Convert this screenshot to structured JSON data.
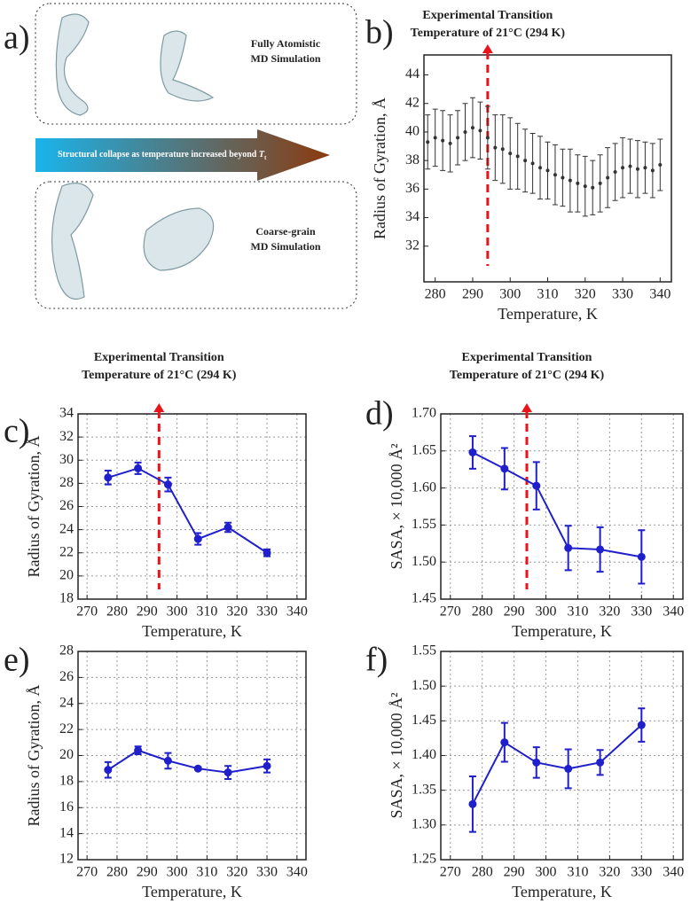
{
  "panel_a": {
    "label": "a)",
    "top_caption": [
      "Fully Atomistic",
      "MD Simulation"
    ],
    "arrow_caption": "Structural collapse as temperature increased beyond",
    "arrow_symbol": "T",
    "arrow_symbol_sub": "t",
    "bottom_caption": [
      "Coarse-grain",
      "MD Simulation"
    ]
  },
  "chart_data": [
    {
      "type": "scatter",
      "label": "b)",
      "xlabel": "Temperature, K",
      "ylabel": "Radius of Gyration, Å",
      "color": "#333333",
      "grid": false,
      "x": [
        278,
        280,
        282,
        284,
        286,
        288,
        290,
        292,
        294,
        296,
        298,
        300,
        302,
        304,
        306,
        308,
        310,
        312,
        314,
        316,
        318,
        320,
        322,
        324,
        326,
        328,
        330,
        332,
        334,
        336,
        338,
        340
      ],
      "values": [
        39.3,
        39.6,
        39.4,
        39.2,
        39.6,
        40.0,
        40.3,
        40.1,
        39.6,
        38.9,
        38.8,
        38.5,
        38.3,
        38.0,
        37.8,
        37.5,
        37.3,
        37.0,
        36.8,
        36.6,
        36.4,
        36.2,
        36.1,
        36.4,
        36.8,
        37.2,
        37.5,
        37.6,
        37.4,
        37.5,
        37.3,
        37.7
      ],
      "errors": [
        1.9,
        2.0,
        2.1,
        2.0,
        1.9,
        2.0,
        2.1,
        2.0,
        2.2,
        2.3,
        2.4,
        2.5,
        2.3,
        2.2,
        2.1,
        2.2,
        2.0,
        2.1,
        2.0,
        2.2,
        2.0,
        2.1,
        1.9,
        2.0,
        2.1,
        2.0,
        2.1,
        1.9,
        2.0,
        1.8,
        1.9,
        1.8
      ],
      "xlim": [
        277,
        343
      ],
      "xticks": [
        280,
        290,
        300,
        310,
        320,
        330,
        340
      ],
      "ylim": [
        29.5,
        45.4
      ],
      "yticks": [
        32,
        34,
        36,
        38,
        40,
        42,
        44
      ],
      "annotation": {
        "x": 294,
        "lines": [
          "Experimental Transition",
          "Temperature of 21°C (294 K)"
        ],
        "color": "#e8141a"
      }
    },
    {
      "type": "line",
      "label": "c)",
      "xlabel": "Temperature, K",
      "ylabel": "Radius of Gyration, Å",
      "color": "#1f1fcc",
      "grid": true,
      "x": [
        277,
        287,
        297,
        307,
        317,
        330
      ],
      "values": [
        28.5,
        29.3,
        27.9,
        23.2,
        24.2,
        22.0
      ],
      "errors": [
        0.6,
        0.5,
        0.6,
        0.5,
        0.4,
        0.3
      ],
      "xlim": [
        267,
        343
      ],
      "xticks": [
        270,
        280,
        290,
        300,
        310,
        320,
        330,
        340
      ],
      "ylim": [
        18,
        34
      ],
      "yticks": [
        18,
        20,
        22,
        24,
        26,
        28,
        30,
        32,
        34
      ],
      "annotation": {
        "x": 294,
        "lines": [
          "Experimental Transition",
          "Temperature of 21°C (294 K)"
        ],
        "color": "#e8141a"
      }
    },
    {
      "type": "line",
      "label": "d)",
      "xlabel": "Temperature, K",
      "ylabel": "SASA, × 10,000 Å²",
      "color": "#1f1fcc",
      "grid": true,
      "x": [
        277,
        287,
        297,
        307,
        317,
        330
      ],
      "values": [
        1.648,
        1.626,
        1.603,
        1.519,
        1.517,
        1.507
      ],
      "errors": [
        0.022,
        0.028,
        0.032,
        0.03,
        0.03,
        0.036
      ],
      "xlim": [
        267,
        343
      ],
      "xticks": [
        270,
        280,
        290,
        300,
        310,
        320,
        330,
        340
      ],
      "ylim": [
        1.45,
        1.7
      ],
      "yticks": [
        {
          "value": 1.45,
          "label": "1.45"
        },
        {
          "value": 1.5,
          "label": "1.50"
        },
        {
          "value": 1.55,
          "label": "1.55"
        },
        {
          "value": 1.6,
          "label": "1.60"
        },
        {
          "value": 1.65,
          "label": "1.65"
        },
        {
          "value": 1.7,
          "label": "1.70"
        }
      ],
      "annotation": {
        "x": 294,
        "lines": [
          "Experimental Transition",
          "Temperature of 21°C (294 K)"
        ],
        "color": "#e8141a"
      }
    },
    {
      "type": "line",
      "label": "e)",
      "xlabel": "Temperature, K",
      "ylabel": "Radius of Gyration, Å",
      "color": "#1f1fcc",
      "grid": true,
      "x": [
        277,
        287,
        297,
        307,
        317,
        330
      ],
      "values": [
        18.9,
        20.4,
        19.6,
        19.0,
        18.7,
        19.2
      ],
      "errors": [
        0.6,
        0.3,
        0.6,
        0.1,
        0.5,
        0.5
      ],
      "xlim": [
        267,
        343
      ],
      "xticks": [
        270,
        280,
        290,
        300,
        310,
        320,
        330,
        340
      ],
      "ylim": [
        12,
        28
      ],
      "yticks": [
        12,
        14,
        16,
        18,
        20,
        22,
        24,
        26,
        28
      ]
    },
    {
      "type": "line",
      "label": "f)",
      "xlabel": "Temperature, K",
      "ylabel": "SASA, × 10,000 Å²",
      "color": "#1f1fcc",
      "grid": true,
      "x": [
        277,
        287,
        297,
        307,
        317,
        330
      ],
      "values": [
        1.33,
        1.419,
        1.39,
        1.381,
        1.39,
        1.444
      ],
      "errors": [
        0.04,
        0.028,
        0.022,
        0.028,
        0.018,
        0.024
      ],
      "xlim": [
        267,
        343
      ],
      "xticks": [
        270,
        280,
        290,
        300,
        310,
        320,
        330,
        340
      ],
      "ylim": [
        1.25,
        1.55
      ],
      "yticks": [
        {
          "value": 1.25,
          "label": "1.25"
        },
        {
          "value": 1.3,
          "label": "1.30"
        },
        {
          "value": 1.35,
          "label": "1.35"
        },
        {
          "value": 1.4,
          "label": "1.40"
        },
        {
          "value": 1.45,
          "label": "1.45"
        },
        {
          "value": 1.5,
          "label": "1.50"
        },
        {
          "value": 1.55,
          "label": "1.55"
        }
      ]
    }
  ]
}
